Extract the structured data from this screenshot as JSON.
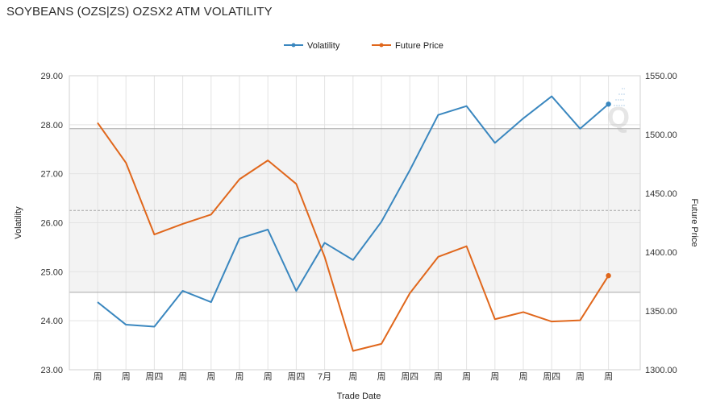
{
  "chart_data": {
    "type": "line",
    "title": "SOYBEANS (OZS|ZS) OZSX2 ATM VOLATILITY",
    "xlabel": "Trade Date",
    "ylabel_left": "Volatility",
    "ylabel_right": "Future Price",
    "categories": [
      "周",
      "周",
      "周四",
      "周",
      "周",
      "周",
      "周",
      "周四",
      "7月",
      "周",
      "周",
      "周四",
      "周",
      "周",
      "周",
      "周",
      "周四",
      "周",
      "周"
    ],
    "left_axis": {
      "ylim": [
        23,
        29
      ],
      "ticks": [
        "23.00",
        "24.00",
        "25.00",
        "26.00",
        "27.00",
        "28.00",
        "29.00"
      ]
    },
    "right_axis": {
      "ylim": [
        1300,
        1550
      ],
      "ticks": [
        "1300.00",
        "1350.00",
        "1400.00",
        "1450.00",
        "1500.00",
        "1550.00"
      ]
    },
    "series": [
      {
        "name": "Volatility",
        "axis": "left",
        "color": "#3a87bf",
        "values": [
          24.38,
          23.92,
          23.88,
          24.61,
          24.38,
          25.68,
          25.86,
          24.61,
          25.59,
          25.24,
          26.02,
          27.07,
          28.2,
          28.38,
          27.63,
          28.13,
          28.58,
          27.92,
          28.42
        ]
      },
      {
        "name": "Future Price",
        "axis": "right",
        "color": "#e0671c",
        "values": [
          1510,
          1476,
          1415,
          1424,
          1432,
          1462,
          1478,
          1458,
          1396,
          1316,
          1322,
          1365,
          1396,
          1405,
          1343,
          1349,
          1341,
          1342,
          1380
        ]
      }
    ],
    "bands": {
      "upper": 27.92,
      "middle": 26.25,
      "lower": 24.58
    },
    "grid": true,
    "legend": "top-center"
  }
}
